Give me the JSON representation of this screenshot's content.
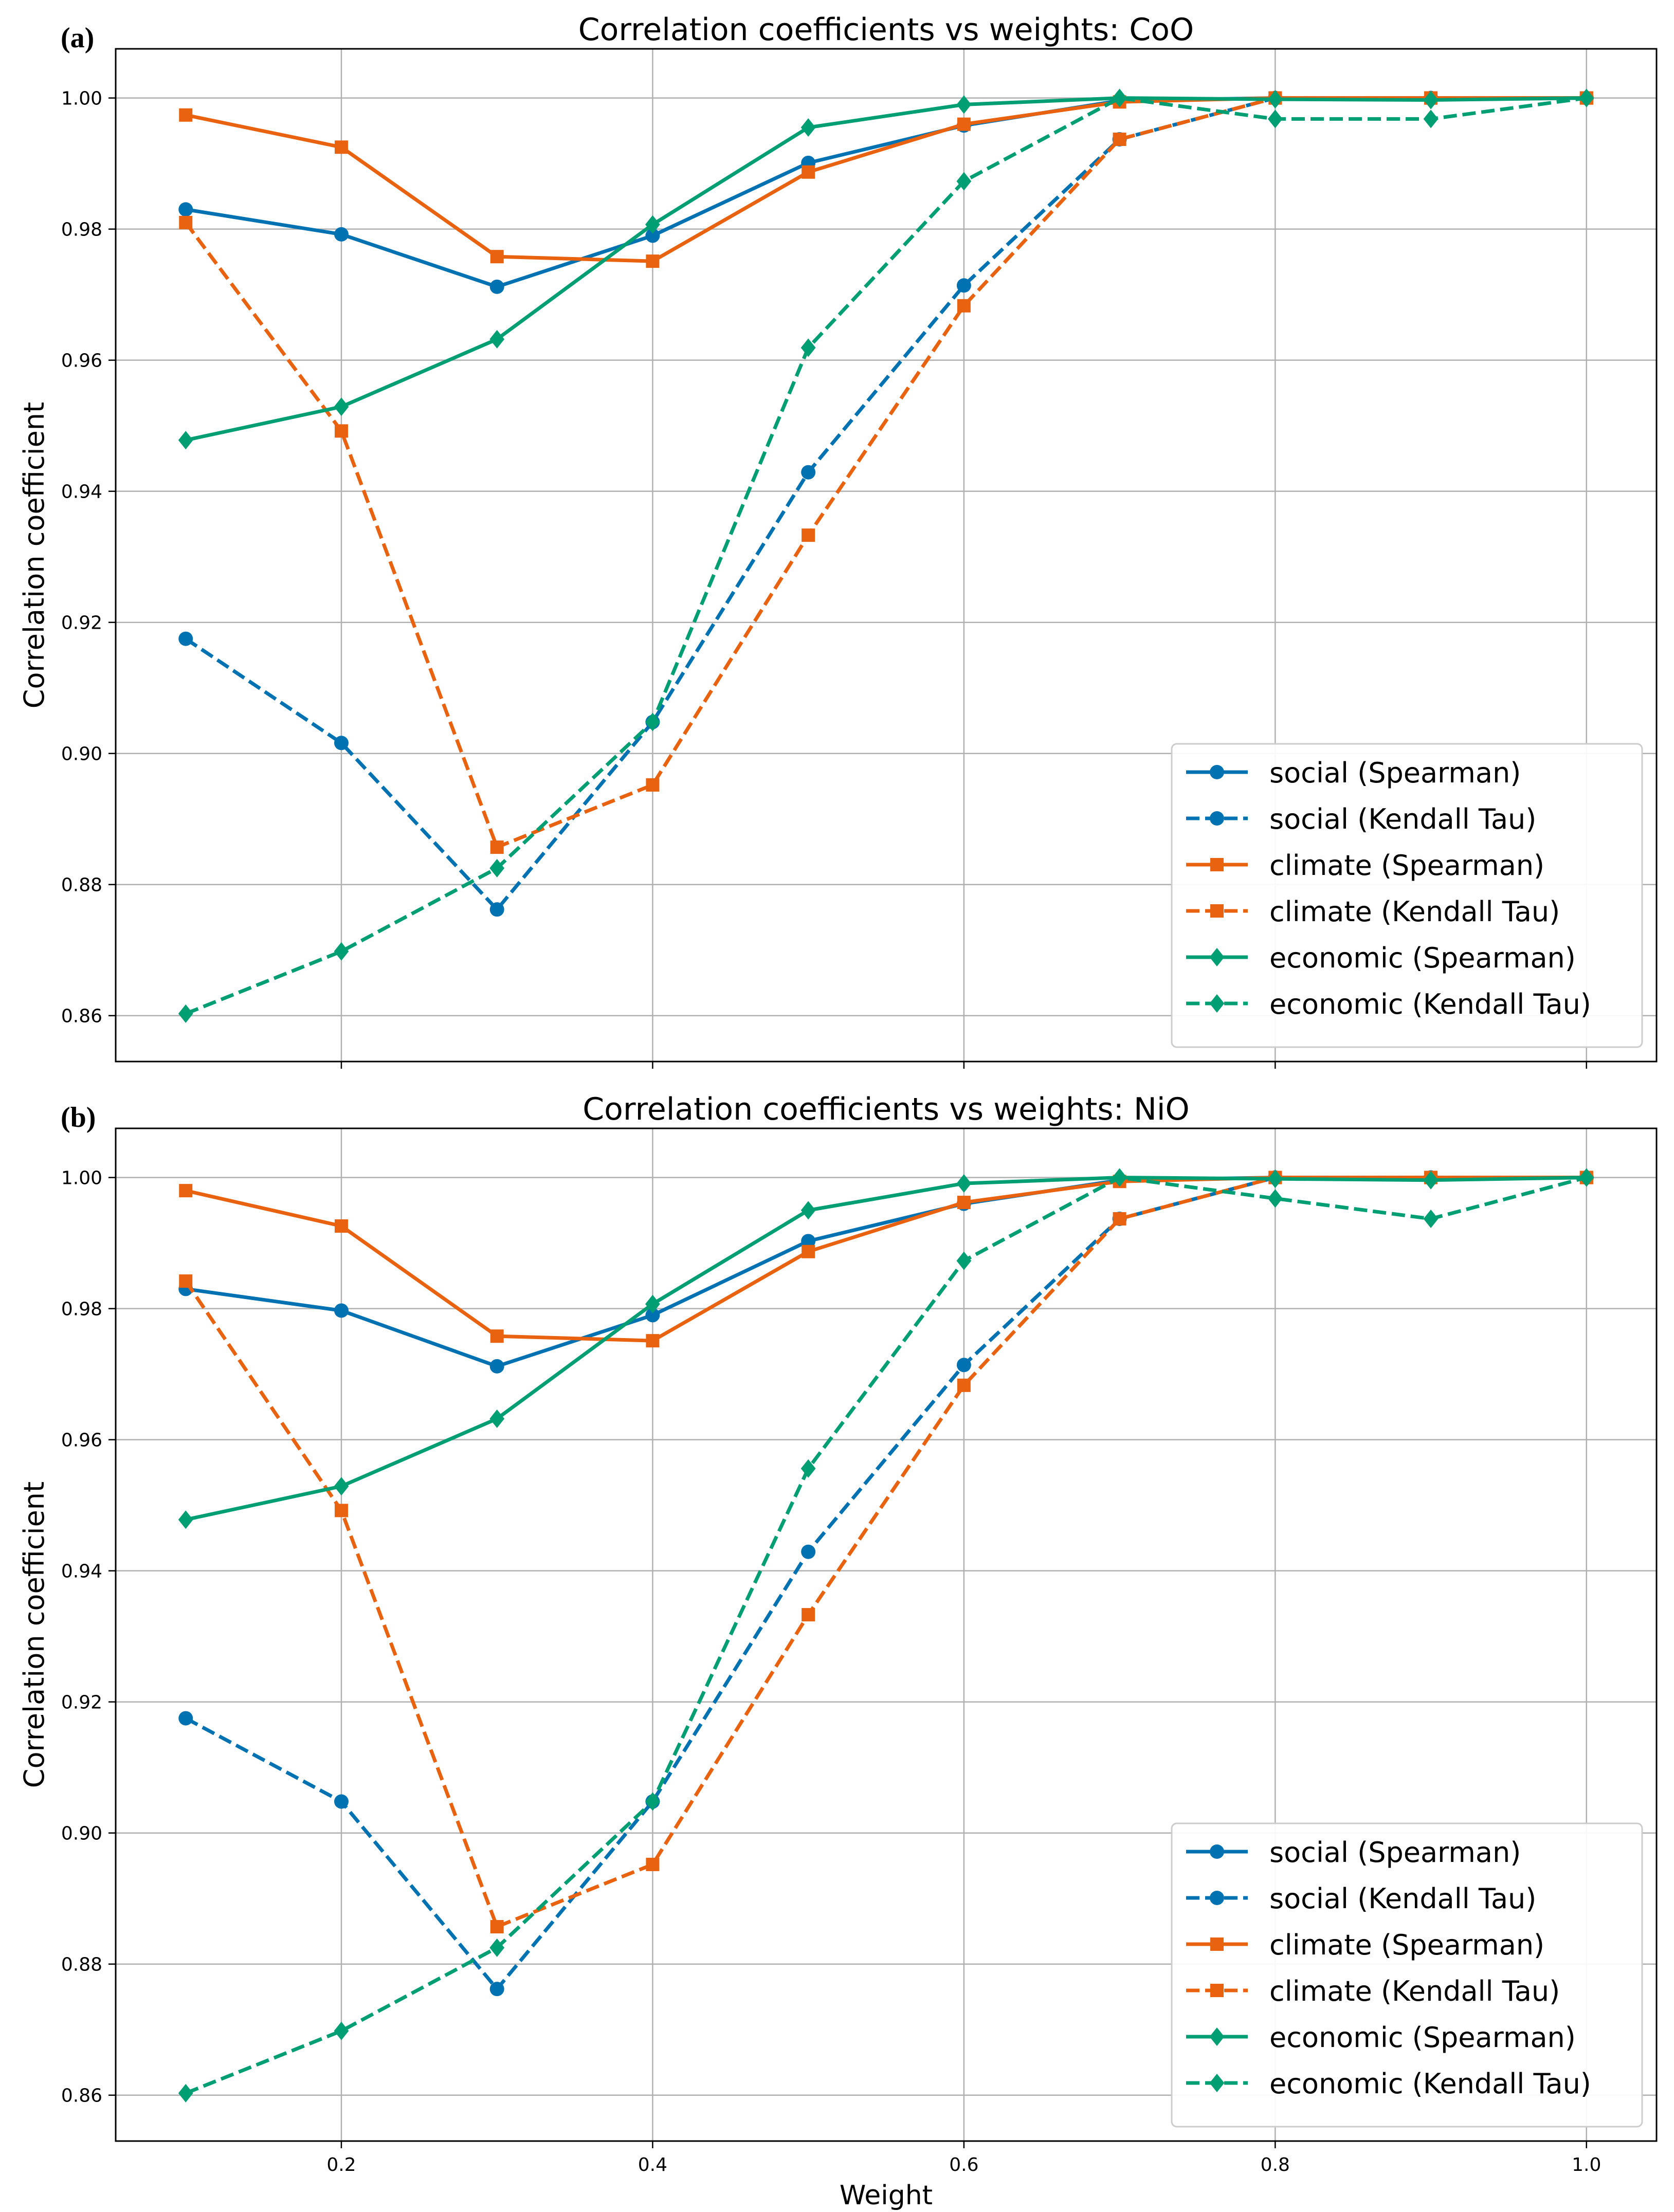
{
  "chart_data": [
    {
      "type": "line",
      "panel_label": "(a)",
      "title": "Correlation coefficients vs weights: CoO",
      "xlabel": "",
      "ylabel": "Correlation coefficient",
      "xlim": [
        0.055,
        1.045
      ],
      "ylim": [
        0.853,
        1.0075
      ],
      "x_ticks": [
        0.2,
        0.4,
        0.6,
        0.8,
        1.0
      ],
      "x_tick_labels": [
        "",
        "",
        "",
        "",
        ""
      ],
      "y_ticks": [
        0.86,
        0.88,
        0.9,
        0.92,
        0.94,
        0.96,
        0.98,
        1.0
      ],
      "y_tick_labels": [
        "0.86",
        "0.88",
        "0.90",
        "0.92",
        "0.94",
        "0.96",
        "0.98",
        "1.00"
      ],
      "grid": true,
      "legend_position": "lower-right",
      "x": [
        0.1,
        0.2,
        0.3,
        0.4,
        0.5,
        0.6,
        0.7,
        0.8,
        0.9,
        1.0
      ],
      "series": [
        {
          "name": "social (Spearman)",
          "color": "#0072B2",
          "marker": "circle",
          "dashed": false,
          "values": [
            0.983,
            0.9792,
            0.9712,
            0.979,
            0.9901,
            0.9958,
            0.9996,
            1.0,
            1.0,
            1.0
          ]
        },
        {
          "name": "social (Kendall Tau)",
          "color": "#0072B2",
          "marker": "circle",
          "dashed": true,
          "values": [
            0.9175,
            0.9016,
            0.8762,
            0.9048,
            0.9429,
            0.9714,
            0.9937,
            1.0,
            1.0,
            1.0
          ]
        },
        {
          "name": "climate (Spearman)",
          "color": "#E8620F",
          "marker": "square",
          "dashed": false,
          "values": [
            0.9974,
            0.9925,
            0.9758,
            0.9751,
            0.9887,
            0.996,
            0.9994,
            1.0,
            1.0,
            1.0
          ]
        },
        {
          "name": "climate (Kendall Tau)",
          "color": "#E8620F",
          "marker": "square",
          "dashed": true,
          "values": [
            0.981,
            0.9492,
            0.8857,
            0.8952,
            0.9333,
            0.9683,
            0.9937,
            1.0,
            1.0,
            1.0
          ]
        },
        {
          "name": "economic (Spearman)",
          "color": "#009E73",
          "marker": "diamond",
          "dashed": false,
          "values": [
            0.9478,
            0.9529,
            0.9632,
            0.9807,
            0.9955,
            0.999,
            1.0,
            0.9998,
            0.9997,
            1.0
          ]
        },
        {
          "name": "economic (Kendall Tau)",
          "color": "#009E73",
          "marker": "diamond",
          "dashed": true,
          "values": [
            0.8603,
            0.8698,
            0.8825,
            0.9048,
            0.9619,
            0.9873,
            1.0,
            0.9968,
            0.9968,
            1.0
          ]
        }
      ]
    },
    {
      "type": "line",
      "panel_label": "(b)",
      "title": "Correlation coefficients vs weights: NiO",
      "xlabel": "Weight",
      "ylabel": "Correlation coefficient",
      "xlim": [
        0.055,
        1.045
      ],
      "ylim": [
        0.853,
        1.0075
      ],
      "x_ticks": [
        0.2,
        0.4,
        0.6,
        0.8,
        1.0
      ],
      "x_tick_labels": [
        "0.2",
        "0.4",
        "0.6",
        "0.8",
        "1.0"
      ],
      "y_ticks": [
        0.86,
        0.88,
        0.9,
        0.92,
        0.94,
        0.96,
        0.98,
        1.0
      ],
      "y_tick_labels": [
        "0.86",
        "0.88",
        "0.90",
        "0.92",
        "0.94",
        "0.96",
        "0.98",
        "1.00"
      ],
      "grid": true,
      "legend_position": "lower-right",
      "x": [
        0.1,
        0.2,
        0.3,
        0.4,
        0.5,
        0.6,
        0.7,
        0.8,
        0.9,
        1.0
      ],
      "series": [
        {
          "name": "social (Spearman)",
          "color": "#0072B2",
          "marker": "circle",
          "dashed": false,
          "values": [
            0.983,
            0.9797,
            0.9712,
            0.979,
            0.9903,
            0.996,
            0.9996,
            1.0,
            1.0,
            1.0
          ]
        },
        {
          "name": "social (Kendall Tau)",
          "color": "#0072B2",
          "marker": "circle",
          "dashed": true,
          "values": [
            0.9175,
            0.9048,
            0.8762,
            0.9048,
            0.9429,
            0.9714,
            0.9937,
            1.0,
            1.0,
            1.0
          ]
        },
        {
          "name": "climate (Spearman)",
          "color": "#E8620F",
          "marker": "square",
          "dashed": false,
          "values": [
            0.998,
            0.9926,
            0.9758,
            0.9751,
            0.9887,
            0.9962,
            0.9994,
            1.0,
            1.0,
            1.0
          ]
        },
        {
          "name": "climate (Kendall Tau)",
          "color": "#E8620F",
          "marker": "square",
          "dashed": true,
          "values": [
            0.9842,
            0.9492,
            0.8857,
            0.8952,
            0.9333,
            0.9683,
            0.9937,
            1.0,
            1.0,
            1.0
          ]
        },
        {
          "name": "economic (Spearman)",
          "color": "#009E73",
          "marker": "diamond",
          "dashed": false,
          "values": [
            0.9478,
            0.9529,
            0.9632,
            0.9807,
            0.995,
            0.9991,
            1.0,
            0.9998,
            0.9996,
            1.0
          ]
        },
        {
          "name": "economic (Kendall Tau)",
          "color": "#009E73",
          "marker": "diamond",
          "dashed": true,
          "values": [
            0.8603,
            0.8698,
            0.8825,
            0.9048,
            0.9556,
            0.9873,
            1.0,
            0.9968,
            0.9937,
            1.0
          ]
        }
      ]
    }
  ]
}
